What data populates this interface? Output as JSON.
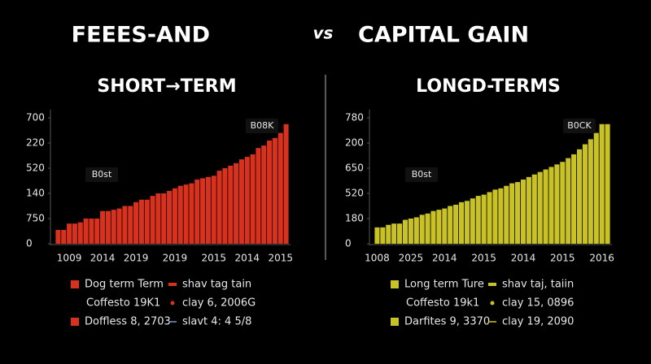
{
  "header": {
    "title_left": "FEEES-AND",
    "vs": "vs",
    "title_right": "CAPITAL GAIN"
  },
  "chart_data": [
    {
      "type": "bar",
      "title": "SHORT→TERM",
      "color": "#d8321e",
      "categories": [
        null,
        null,
        "1009",
        null,
        null,
        null,
        null,
        null,
        "2014",
        null,
        null,
        null,
        null,
        null,
        "2019",
        null,
        null,
        null,
        null,
        null,
        null,
        "2019",
        null,
        null,
        null,
        null,
        null,
        null,
        "2015",
        null,
        null,
        null,
        null,
        null,
        "2014",
        null,
        null,
        null,
        null,
        null,
        "2015",
        null
      ],
      "values": [
        55,
        55,
        80,
        80,
        85,
        100,
        100,
        100,
        130,
        130,
        135,
        140,
        150,
        150,
        165,
        175,
        175,
        190,
        200,
        200,
        210,
        220,
        230,
        235,
        240,
        255,
        260,
        265,
        270,
        290,
        300,
        310,
        320,
        335,
        345,
        355,
        380,
        390,
        410,
        420,
        440,
        475
      ],
      "ylim": [
        0,
        500
      ],
      "yticks": [
        0,
        {
          "value": 100,
          "label": "750"
        },
        {
          "value": 200,
          "label": "140"
        },
        {
          "value": 300,
          "label": "520"
        },
        {
          "value": 400,
          "label": "220"
        },
        {
          "value": 500,
          "label": "700"
        }
      ],
      "annotations": [
        "B08K",
        "B0st"
      ],
      "legend": [
        {
          "label": "Dog term Term",
          "color": "#d8321e",
          "marker": "square"
        },
        {
          "label": "shav tag tain",
          "color": "#d8321e",
          "marker": "dash"
        },
        {
          "label": "Coffesto 19K1",
          "marker": "none"
        },
        {
          "label": "clay 6, 2006G",
          "color": "#d8321e",
          "marker": "dot"
        },
        {
          "label": "Doffless 8, 2703",
          "color": "#d8321e",
          "marker": "square"
        },
        {
          "label": "slavt 4: 4 5/8",
          "color": "#7f8fc0",
          "marker": "line"
        }
      ]
    },
    {
      "type": "bar",
      "title": "LONGD-TERMS",
      "color": "#c9c227",
      "categories": [
        "1008",
        null,
        null,
        null,
        null,
        null,
        "2025",
        null,
        null,
        null,
        null,
        null,
        "2014",
        null,
        null,
        null,
        null,
        null,
        null,
        "2015",
        null,
        null,
        null,
        null,
        null,
        null,
        "2014",
        null,
        null,
        null,
        null,
        null,
        null,
        "2015",
        null,
        null,
        null,
        null,
        null,
        null,
        "2016",
        null
      ],
      "values": [
        65,
        65,
        75,
        80,
        80,
        95,
        100,
        105,
        115,
        120,
        130,
        135,
        140,
        150,
        155,
        165,
        170,
        180,
        190,
        195,
        205,
        215,
        220,
        230,
        240,
        245,
        255,
        265,
        275,
        285,
        295,
        305,
        315,
        325,
        340,
        355,
        375,
        395,
        415,
        440,
        475,
        475
      ],
      "ylim": [
        0,
        500
      ],
      "yticks": [
        0,
        {
          "value": 100,
          "label": "180"
        },
        {
          "value": 200,
          "label": "520"
        },
        {
          "value": 300,
          "label": "650"
        },
        {
          "value": 400,
          "label": "200"
        },
        {
          "value": 500,
          "label": "780"
        }
      ],
      "annotations": [
        "B0CK",
        "B0st"
      ],
      "legend": [
        {
          "label": "Long term Ture",
          "color": "#c9c227",
          "marker": "square"
        },
        {
          "label": "shav taj, taiin",
          "color": "#c9c227",
          "marker": "dash"
        },
        {
          "label": "Coffesto 19k1",
          "marker": "none"
        },
        {
          "label": "clay 15, 0896",
          "color": "#c9c227",
          "marker": "dot"
        },
        {
          "label": "Darfites 9, 3370",
          "color": "#c9c227",
          "marker": "square"
        },
        {
          "label": "clay 19, 2090",
          "color": "#c9c227",
          "marker": "line"
        }
      ]
    }
  ]
}
